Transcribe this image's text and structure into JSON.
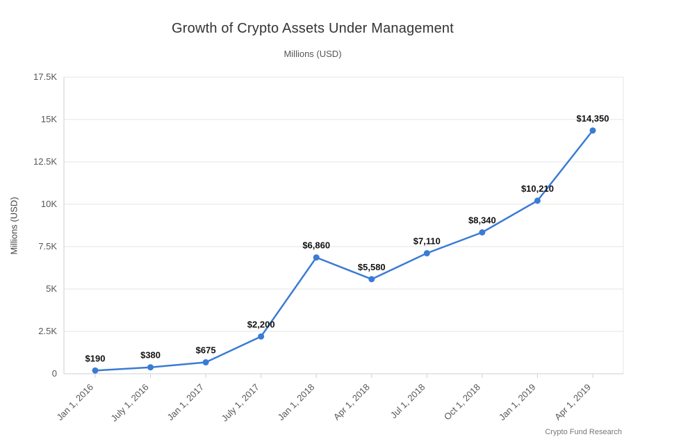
{
  "header": {
    "title": "Growth of Crypto Assets Under Management",
    "subtitle": "Millions (USD)"
  },
  "footer": {
    "credit": "Crypto Fund Research"
  },
  "colors": {
    "line": "#3a7bd5",
    "point": "#3a7bd5",
    "grid": "#e6e6e6",
    "axis": "#cfcfcf",
    "title": "#333333",
    "tick_label": "#565656",
    "data_label": "#111111"
  },
  "chart_data": {
    "type": "line",
    "title": "Growth of Crypto Assets Under Management",
    "subtitle": "Millions (USD)",
    "ylabel": "Millions (USD)",
    "xlabel": "",
    "categories": [
      "Jan 1, 2016",
      "July 1, 2016",
      "Jan 1, 2017",
      "July 1, 2017",
      "Jan 1, 2018",
      "Apr 1, 2018",
      "Jul 1, 2018",
      "Oct 1, 2018",
      "Jan 1, 2019",
      "Apr 1, 2019"
    ],
    "values": [
      190,
      380,
      675,
      2200,
      6860,
      5580,
      7110,
      8340,
      10210,
      14350
    ],
    "point_labels": [
      "$190",
      "$380",
      "$675",
      "$2,200",
      "$6,860",
      "$5,580",
      "$7,110",
      "$8,340",
      "$10,210",
      "$14,350"
    ],
    "ylim": [
      0,
      17500
    ],
    "yticks": [
      0,
      2500,
      5000,
      7500,
      10000,
      12500,
      15000,
      17500
    ],
    "ytick_labels": [
      "0",
      "2.5K",
      "5K",
      "7.5K",
      "10K",
      "12.5K",
      "15K",
      "17.5K"
    ],
    "grid": true,
    "legend": "none",
    "source": "Crypto Fund Research"
  }
}
